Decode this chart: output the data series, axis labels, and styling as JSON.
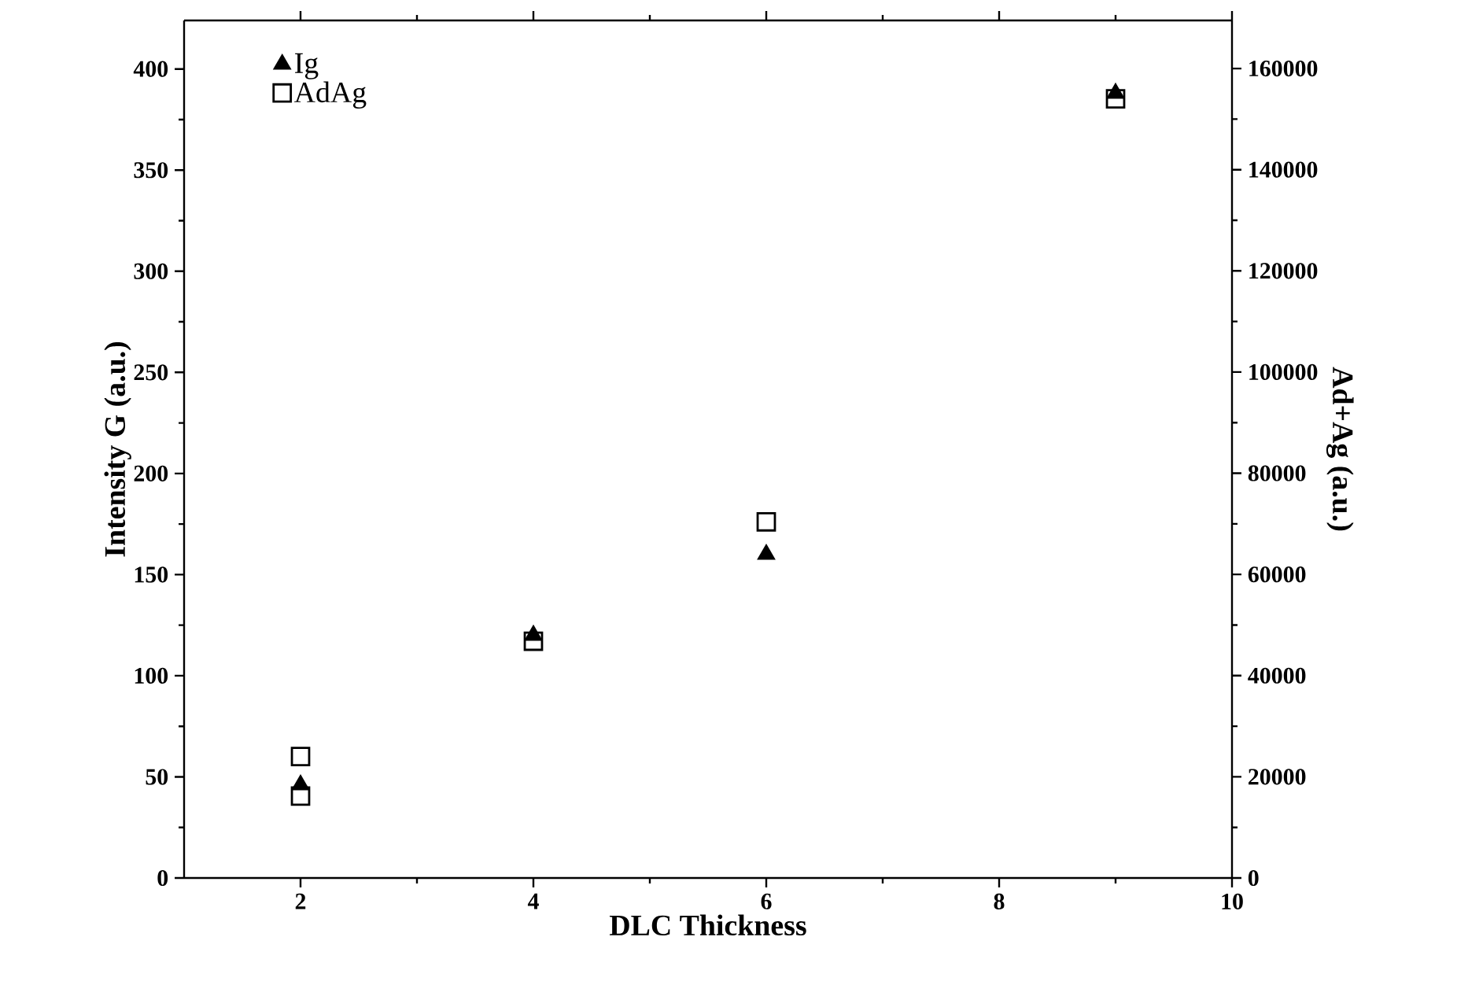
{
  "chart_data": {
    "type": "scatter",
    "xlabel": "DLC Thickness",
    "ylabel": "Intensity G (a.u.)",
    "y2label": "Ad+Ag (a.u.)",
    "xlim": [
      1,
      10
    ],
    "xticks": [
      2,
      4,
      6,
      8,
      10
    ],
    "ylim": [
      0,
      424
    ],
    "yticks": [
      0,
      50,
      100,
      150,
      200,
      250,
      300,
      350,
      400
    ],
    "y2lim": [
      0,
      169500
    ],
    "y2ticks": [
      0,
      20000,
      40000,
      60000,
      80000,
      100000,
      120000,
      140000,
      160000
    ],
    "legend": "top left",
    "grid": false,
    "series": [
      {
        "name": "Ig",
        "color": "#000000",
        "marker": "triangle",
        "x": [
          2,
          4,
          6,
          9
        ],
        "values": [
          46,
          120,
          160,
          388
        ]
      },
      {
        "name": "AdAg",
        "color": "#000000",
        "marker": "square",
        "axis": "y2",
        "x": [
          2,
          2,
          4,
          6,
          9
        ],
        "values": [
          24000,
          16200,
          46800,
          70400,
          154000
        ]
      }
    ]
  }
}
